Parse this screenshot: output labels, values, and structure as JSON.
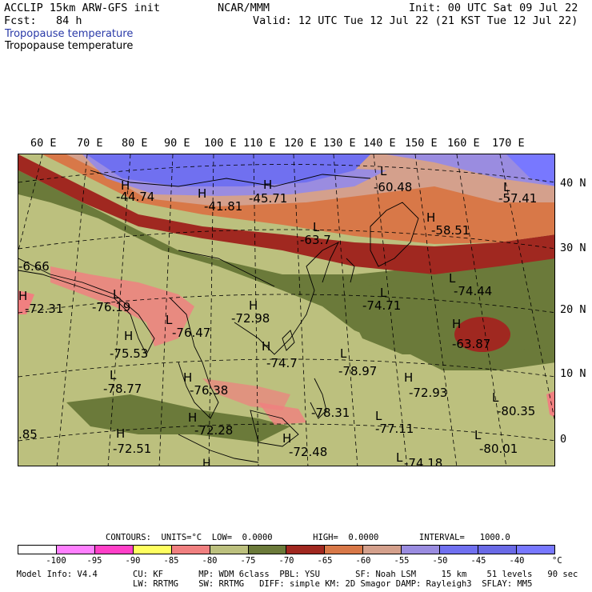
{
  "header": {
    "model": "ACCLIP 15km ARW-GFS init",
    "center": "NCAR/MMM",
    "init": "Init: 00 UTC Sat 09 Jul 22",
    "fcst": "Fcst:   84 h",
    "valid": "Valid: 12 UTC Tue 12 Jul 22 (21 KST Tue 12 Jul 22)",
    "field_title_1": "Tropopause temperature",
    "field_title_2": "Tropopause temperature"
  },
  "map": {
    "lon_labels": [
      "60 E",
      "70 E",
      "80 E",
      "90 E",
      "100 E",
      "110 E",
      "120 E",
      "130 E",
      "140 E",
      "150 E",
      "160 E",
      "170 E"
    ],
    "lat_labels": [
      "40 N",
      "30 N",
      "20 N",
      "10 N",
      "0"
    ],
    "pressure_centers": [
      {
        "type": "H",
        "value": "-44.74"
      },
      {
        "type": "H",
        "value": "-41.81"
      },
      {
        "type": "H",
        "value": "-45.71"
      },
      {
        "type": "L",
        "value": "-60.48"
      },
      {
        "type": "L",
        "value": "-57.41"
      },
      {
        "type": "H",
        "value": "-58.51"
      },
      {
        "type": "L",
        "value": "-63.7"
      },
      {
        "type": "",
        "value": "-6.66"
      },
      {
        "type": "H",
        "value": "-72.31"
      },
      {
        "type": "L",
        "value": "-76.19"
      },
      {
        "type": "L",
        "value": "-76.47"
      },
      {
        "type": "H",
        "value": "-72.98"
      },
      {
        "type": "L",
        "value": "-74.71"
      },
      {
        "type": "L",
        "value": "-74.44"
      },
      {
        "type": "H",
        "value": "-75.53"
      },
      {
        "type": "H",
        "value": "-74.7"
      },
      {
        "type": "H",
        "value": "-63.87"
      },
      {
        "type": "L",
        "value": "-78.77"
      },
      {
        "type": "H",
        "value": "-76.38"
      },
      {
        "type": "L",
        "value": "-78.97"
      },
      {
        "type": "H",
        "value": "-72.93"
      },
      {
        "type": "L",
        "value": "-80.35"
      },
      {
        "type": "",
        "value": "-78.31"
      },
      {
        "type": "H",
        "value": "-72.28"
      },
      {
        "type": "L",
        "value": "-77.11"
      },
      {
        "type": "",
        "value": ".85"
      },
      {
        "type": "H",
        "value": "-72.51"
      },
      {
        "type": "H",
        "value": "-72.48"
      },
      {
        "type": "L",
        "value": "-80.01"
      },
      {
        "type": "L",
        "value": "-74.18"
      }
    ]
  },
  "legend": {
    "contours_line": "CONTOURS:  UNITS=°C  LOW=  0.0000        HIGH=  0.0000        INTERVAL=   1000.0",
    "unit": "°C",
    "ticks": [
      "-100",
      "-95",
      "-90",
      "-85",
      "-80",
      "-75",
      "-70",
      "-65",
      "-60",
      "-55",
      "-50",
      "-45",
      "-40"
    ],
    "colors": [
      "#ffffff",
      "#ff80ff",
      "#ff40c8",
      "#ffff60",
      "#f08080",
      "#bcc07e",
      "#6b7a3a",
      "#a02820",
      "#d87848",
      "#d4a08c",
      "#9a8ce0",
      "#7070f0",
      "#6a6ae6",
      "#7878ff"
    ]
  },
  "footer": {
    "line1": "  Model Info: V4.4       CU: KF       MP: WDM 6class  PBL: YSU       SF: Noah LSM     15 km    51 levels   90 sec",
    "line2": "                         LW: RRTMG    SW: RRTMG   DIFF: simple KM: 2D Smagor DAMP: Rayleigh3  SFLAY: MM5"
  }
}
